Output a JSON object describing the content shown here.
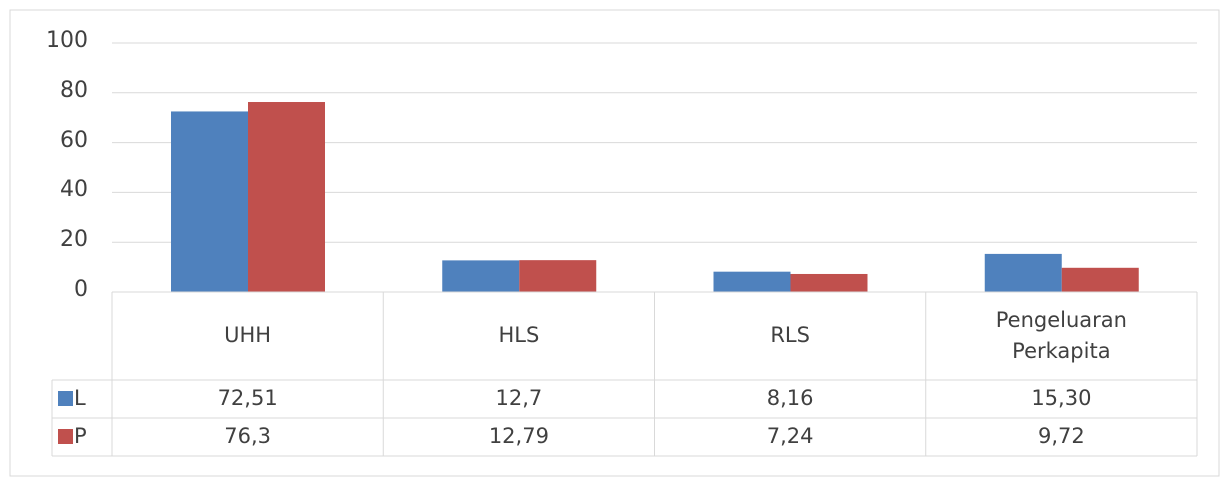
{
  "chart_data": {
    "type": "bar",
    "categories": [
      "UHH",
      "HLS",
      "RLS",
      "Pengeluaran Perkapita"
    ],
    "series": [
      {
        "name": "L",
        "color": "#4f81bd",
        "values": [
          72.51,
          12.7,
          8.16,
          15.3
        ],
        "value_labels": [
          "72,51",
          "12,7",
          "8,16",
          "15,30"
        ]
      },
      {
        "name": "P",
        "color": "#c0504d",
        "values": [
          76.3,
          12.79,
          7.24,
          9.72
        ],
        "value_labels": [
          "76,3",
          "12,79",
          "7,24",
          "9,72"
        ]
      }
    ],
    "ylim": [
      0,
      100
    ],
    "yticks": [
      0,
      20,
      40,
      60,
      80,
      100
    ],
    "grid": true
  }
}
